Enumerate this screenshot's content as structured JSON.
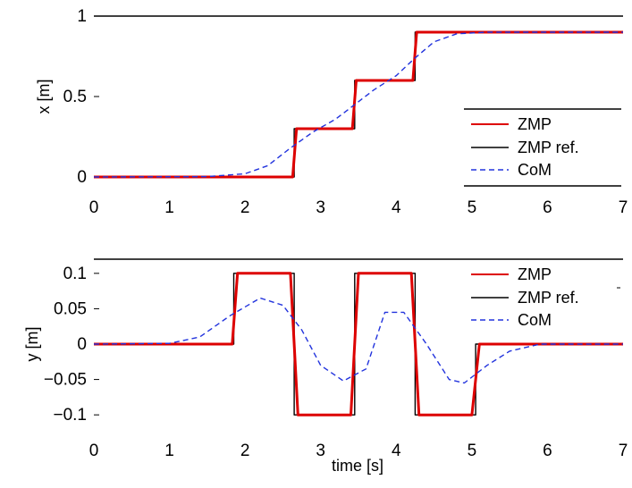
{
  "chart_data": [
    {
      "type": "line",
      "title": "",
      "xlabel": "",
      "ylabel": "x [m]",
      "xlim": [
        0,
        7
      ],
      "ylim": [
        0,
        1
      ],
      "xticks": [
        "0",
        "1",
        "2",
        "3",
        "4",
        "5",
        "6",
        "7"
      ],
      "yticks": [
        {
          "value": 0,
          "label": "0"
        },
        {
          "value": 0.5,
          "label": "0.5"
        },
        {
          "value": 1,
          "label": "1"
        }
      ],
      "legend_position": "bottom-right",
      "series": [
        {
          "name": "ZMP",
          "color": "#dd0000",
          "style": "solid",
          "points": [
            [
              0,
              0
            ],
            [
              2.63,
              0
            ],
            [
              2.68,
              0.3
            ],
            [
              3.42,
              0.3
            ],
            [
              3.47,
              0.6
            ],
            [
              4.22,
              0.6
            ],
            [
              4.27,
              0.9
            ],
            [
              7,
              0.9
            ]
          ]
        },
        {
          "name": "ZMP ref.",
          "color": "#000000",
          "style": "solid",
          "points": [
            [
              0,
              0
            ],
            [
              2.65,
              0
            ],
            [
              2.65,
              0.3
            ],
            [
              3.45,
              0.3
            ],
            [
              3.45,
              0.6
            ],
            [
              4.25,
              0.6
            ],
            [
              4.25,
              0.9
            ],
            [
              7,
              0.9
            ]
          ]
        },
        {
          "name": "CoM",
          "color": "#2233dd",
          "style": "dashed",
          "points": [
            [
              0,
              0
            ],
            [
              1.5,
              0.002
            ],
            [
              2.0,
              0.02
            ],
            [
              2.3,
              0.07
            ],
            [
              2.6,
              0.18
            ],
            [
              2.9,
              0.28
            ],
            [
              3.2,
              0.36
            ],
            [
              3.45,
              0.45
            ],
            [
              3.7,
              0.54
            ],
            [
              4.0,
              0.63
            ],
            [
              4.25,
              0.74
            ],
            [
              4.5,
              0.84
            ],
            [
              4.8,
              0.89
            ],
            [
              5.2,
              0.9
            ],
            [
              7,
              0.9
            ]
          ]
        }
      ]
    },
    {
      "type": "line",
      "title": "",
      "xlabel": "time [s]",
      "ylabel": "y [m]",
      "xlim": [
        0,
        7
      ],
      "ylim": [
        -0.12,
        0.12
      ],
      "xticks": [
        "0",
        "1",
        "2",
        "3",
        "4",
        "5",
        "6",
        "7"
      ],
      "yticks": [
        {
          "value": 0.1,
          "label": "0.1"
        },
        {
          "value": 0.05,
          "label": "0.05"
        },
        {
          "value": 0,
          "label": "0"
        },
        {
          "value": -0.05,
          "label": "-0.05"
        },
        {
          "value": -0.1,
          "label": "-0.1"
        }
      ],
      "legend_position": "top-right",
      "series": [
        {
          "name": "ZMP",
          "color": "#dd0000",
          "style": "solid",
          "points": [
            [
              0,
              0
            ],
            [
              1.83,
              0
            ],
            [
              1.9,
              0.1
            ],
            [
              2.6,
              0.1
            ],
            [
              2.7,
              -0.1
            ],
            [
              3.4,
              -0.1
            ],
            [
              3.5,
              0.1
            ],
            [
              4.2,
              0.1
            ],
            [
              4.3,
              -0.1
            ],
            [
              5.0,
              -0.1
            ],
            [
              5.1,
              0
            ],
            [
              7,
              0
            ]
          ]
        },
        {
          "name": "ZMP ref.",
          "color": "#000000",
          "style": "solid",
          "points": [
            [
              0,
              0
            ],
            [
              1.85,
              0
            ],
            [
              1.85,
              0.1
            ],
            [
              2.65,
              0.1
            ],
            [
              2.65,
              -0.1
            ],
            [
              3.45,
              -0.1
            ],
            [
              3.45,
              0.1
            ],
            [
              4.25,
              0.1
            ],
            [
              4.25,
              -0.1
            ],
            [
              5.05,
              -0.1
            ],
            [
              5.05,
              0
            ],
            [
              7,
              0
            ]
          ]
        },
        {
          "name": "CoM",
          "color": "#2233dd",
          "style": "dashed",
          "points": [
            [
              0,
              0
            ],
            [
              1.0,
              0.001
            ],
            [
              1.4,
              0.01
            ],
            [
              1.8,
              0.04
            ],
            [
              2.2,
              0.065
            ],
            [
              2.5,
              0.055
            ],
            [
              2.75,
              0.02
            ],
            [
              3.0,
              -0.03
            ],
            [
              3.3,
              -0.052
            ],
            [
              3.6,
              -0.035
            ],
            [
              3.85,
              0.045
            ],
            [
              4.1,
              0.045
            ],
            [
              4.4,
              0.0
            ],
            [
              4.7,
              -0.05
            ],
            [
              4.9,
              -0.055
            ],
            [
              5.2,
              -0.03
            ],
            [
              5.5,
              -0.01
            ],
            [
              5.9,
              0
            ],
            [
              7,
              0
            ]
          ]
        }
      ]
    }
  ]
}
